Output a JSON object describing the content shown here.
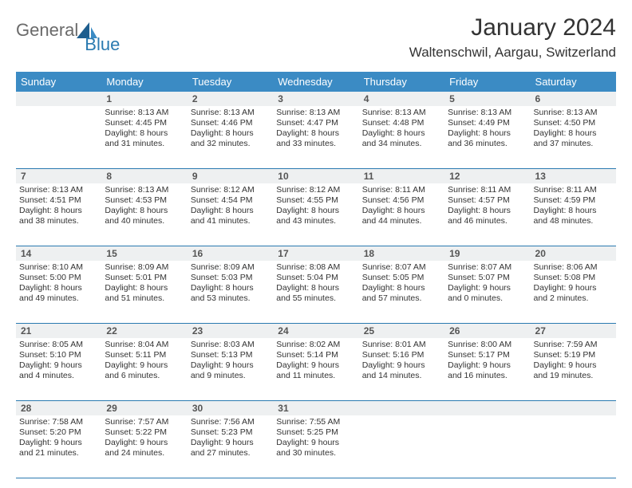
{
  "logo": {
    "general": "General",
    "blue": "Blue"
  },
  "title": "January 2024",
  "location": "Waltenschwil, Aargau, Switzerland",
  "colors": {
    "header_bg": "#3b8bc4",
    "header_text": "#ffffff",
    "divider": "#2a7ab0",
    "daynum_bg": "#eef0f1",
    "text": "#333333",
    "logo_gray": "#6a6a6a",
    "logo_blue": "#2a7ab0"
  },
  "day_names": [
    "Sunday",
    "Monday",
    "Tuesday",
    "Wednesday",
    "Thursday",
    "Friday",
    "Saturday"
  ],
  "weeks": [
    {
      "nums": [
        "",
        "1",
        "2",
        "3",
        "4",
        "5",
        "6"
      ],
      "cells": [
        null,
        {
          "sunrise": "Sunrise: 8:13 AM",
          "sunset": "Sunset: 4:45 PM",
          "d1": "Daylight: 8 hours",
          "d2": "and 31 minutes."
        },
        {
          "sunrise": "Sunrise: 8:13 AM",
          "sunset": "Sunset: 4:46 PM",
          "d1": "Daylight: 8 hours",
          "d2": "and 32 minutes."
        },
        {
          "sunrise": "Sunrise: 8:13 AM",
          "sunset": "Sunset: 4:47 PM",
          "d1": "Daylight: 8 hours",
          "d2": "and 33 minutes."
        },
        {
          "sunrise": "Sunrise: 8:13 AM",
          "sunset": "Sunset: 4:48 PM",
          "d1": "Daylight: 8 hours",
          "d2": "and 34 minutes."
        },
        {
          "sunrise": "Sunrise: 8:13 AM",
          "sunset": "Sunset: 4:49 PM",
          "d1": "Daylight: 8 hours",
          "d2": "and 36 minutes."
        },
        {
          "sunrise": "Sunrise: 8:13 AM",
          "sunset": "Sunset: 4:50 PM",
          "d1": "Daylight: 8 hours",
          "d2": "and 37 minutes."
        }
      ]
    },
    {
      "nums": [
        "7",
        "8",
        "9",
        "10",
        "11",
        "12",
        "13"
      ],
      "cells": [
        {
          "sunrise": "Sunrise: 8:13 AM",
          "sunset": "Sunset: 4:51 PM",
          "d1": "Daylight: 8 hours",
          "d2": "and 38 minutes."
        },
        {
          "sunrise": "Sunrise: 8:13 AM",
          "sunset": "Sunset: 4:53 PM",
          "d1": "Daylight: 8 hours",
          "d2": "and 40 minutes."
        },
        {
          "sunrise": "Sunrise: 8:12 AM",
          "sunset": "Sunset: 4:54 PM",
          "d1": "Daylight: 8 hours",
          "d2": "and 41 minutes."
        },
        {
          "sunrise": "Sunrise: 8:12 AM",
          "sunset": "Sunset: 4:55 PM",
          "d1": "Daylight: 8 hours",
          "d2": "and 43 minutes."
        },
        {
          "sunrise": "Sunrise: 8:11 AM",
          "sunset": "Sunset: 4:56 PM",
          "d1": "Daylight: 8 hours",
          "d2": "and 44 minutes."
        },
        {
          "sunrise": "Sunrise: 8:11 AM",
          "sunset": "Sunset: 4:57 PM",
          "d1": "Daylight: 8 hours",
          "d2": "and 46 minutes."
        },
        {
          "sunrise": "Sunrise: 8:11 AM",
          "sunset": "Sunset: 4:59 PM",
          "d1": "Daylight: 8 hours",
          "d2": "and 48 minutes."
        }
      ]
    },
    {
      "nums": [
        "14",
        "15",
        "16",
        "17",
        "18",
        "19",
        "20"
      ],
      "cells": [
        {
          "sunrise": "Sunrise: 8:10 AM",
          "sunset": "Sunset: 5:00 PM",
          "d1": "Daylight: 8 hours",
          "d2": "and 49 minutes."
        },
        {
          "sunrise": "Sunrise: 8:09 AM",
          "sunset": "Sunset: 5:01 PM",
          "d1": "Daylight: 8 hours",
          "d2": "and 51 minutes."
        },
        {
          "sunrise": "Sunrise: 8:09 AM",
          "sunset": "Sunset: 5:03 PM",
          "d1": "Daylight: 8 hours",
          "d2": "and 53 minutes."
        },
        {
          "sunrise": "Sunrise: 8:08 AM",
          "sunset": "Sunset: 5:04 PM",
          "d1": "Daylight: 8 hours",
          "d2": "and 55 minutes."
        },
        {
          "sunrise": "Sunrise: 8:07 AM",
          "sunset": "Sunset: 5:05 PM",
          "d1": "Daylight: 8 hours",
          "d2": "and 57 minutes."
        },
        {
          "sunrise": "Sunrise: 8:07 AM",
          "sunset": "Sunset: 5:07 PM",
          "d1": "Daylight: 9 hours",
          "d2": "and 0 minutes."
        },
        {
          "sunrise": "Sunrise: 8:06 AM",
          "sunset": "Sunset: 5:08 PM",
          "d1": "Daylight: 9 hours",
          "d2": "and 2 minutes."
        }
      ]
    },
    {
      "nums": [
        "21",
        "22",
        "23",
        "24",
        "25",
        "26",
        "27"
      ],
      "cells": [
        {
          "sunrise": "Sunrise: 8:05 AM",
          "sunset": "Sunset: 5:10 PM",
          "d1": "Daylight: 9 hours",
          "d2": "and 4 minutes."
        },
        {
          "sunrise": "Sunrise: 8:04 AM",
          "sunset": "Sunset: 5:11 PM",
          "d1": "Daylight: 9 hours",
          "d2": "and 6 minutes."
        },
        {
          "sunrise": "Sunrise: 8:03 AM",
          "sunset": "Sunset: 5:13 PM",
          "d1": "Daylight: 9 hours",
          "d2": "and 9 minutes."
        },
        {
          "sunrise": "Sunrise: 8:02 AM",
          "sunset": "Sunset: 5:14 PM",
          "d1": "Daylight: 9 hours",
          "d2": "and 11 minutes."
        },
        {
          "sunrise": "Sunrise: 8:01 AM",
          "sunset": "Sunset: 5:16 PM",
          "d1": "Daylight: 9 hours",
          "d2": "and 14 minutes."
        },
        {
          "sunrise": "Sunrise: 8:00 AM",
          "sunset": "Sunset: 5:17 PM",
          "d1": "Daylight: 9 hours",
          "d2": "and 16 minutes."
        },
        {
          "sunrise": "Sunrise: 7:59 AM",
          "sunset": "Sunset: 5:19 PM",
          "d1": "Daylight: 9 hours",
          "d2": "and 19 minutes."
        }
      ]
    },
    {
      "nums": [
        "28",
        "29",
        "30",
        "31",
        "",
        "",
        ""
      ],
      "cells": [
        {
          "sunrise": "Sunrise: 7:58 AM",
          "sunset": "Sunset: 5:20 PM",
          "d1": "Daylight: 9 hours",
          "d2": "and 21 minutes."
        },
        {
          "sunrise": "Sunrise: 7:57 AM",
          "sunset": "Sunset: 5:22 PM",
          "d1": "Daylight: 9 hours",
          "d2": "and 24 minutes."
        },
        {
          "sunrise": "Sunrise: 7:56 AM",
          "sunset": "Sunset: 5:23 PM",
          "d1": "Daylight: 9 hours",
          "d2": "and 27 minutes."
        },
        {
          "sunrise": "Sunrise: 7:55 AM",
          "sunset": "Sunset: 5:25 PM",
          "d1": "Daylight: 9 hours",
          "d2": "and 30 minutes."
        },
        null,
        null,
        null
      ]
    }
  ]
}
